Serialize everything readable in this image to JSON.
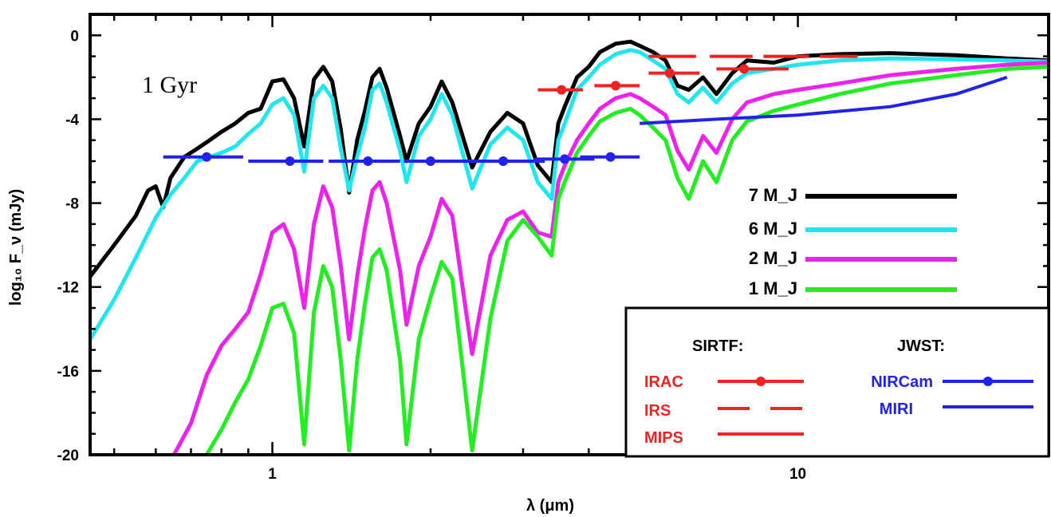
{
  "chart_data": {
    "type": "line",
    "annotation": "1 Gyr",
    "xlabel": "λ (μm)",
    "ylabel": "log₁₀ F_ν (mJy)",
    "xscale": "log",
    "xlim": [
      0.45,
      30
    ],
    "ylim": [
      -20,
      1
    ],
    "x_tick_labels": [
      {
        "x": 1,
        "label": "1"
      },
      {
        "x": 10,
        "label": "10"
      }
    ],
    "y_ticks": [
      0,
      -4,
      -8,
      -12,
      -16,
      -20
    ],
    "y_tick_labels": [
      "0",
      "-4",
      "-8",
      "-12",
      "-16",
      "-20"
    ],
    "grid": false,
    "legend_position": "center-right",
    "series": [
      {
        "name": "7 M_J",
        "color": "#000000",
        "points": [
          [
            0.45,
            -11.5
          ],
          [
            0.5,
            -10
          ],
          [
            0.55,
            -8.6
          ],
          [
            0.58,
            -7.4
          ],
          [
            0.6,
            -7.2
          ],
          [
            0.62,
            -8.2
          ],
          [
            0.64,
            -6.8
          ],
          [
            0.68,
            -5.8
          ],
          [
            0.72,
            -5.4
          ],
          [
            0.76,
            -5.0
          ],
          [
            0.8,
            -4.6
          ],
          [
            0.85,
            -4.2
          ],
          [
            0.9,
            -3.7
          ],
          [
            0.95,
            -3.5
          ],
          [
            1.0,
            -2.2
          ],
          [
            1.05,
            -2.1
          ],
          [
            1.1,
            -3.0
          ],
          [
            1.15,
            -5.3
          ],
          [
            1.2,
            -2.1
          ],
          [
            1.25,
            -1.5
          ],
          [
            1.3,
            -2.2
          ],
          [
            1.35,
            -4.5
          ],
          [
            1.4,
            -7.5
          ],
          [
            1.45,
            -5.0
          ],
          [
            1.5,
            -3.6
          ],
          [
            1.55,
            -2.0
          ],
          [
            1.6,
            -1.6
          ],
          [
            1.65,
            -2.5
          ],
          [
            1.75,
            -4.8
          ],
          [
            1.8,
            -6.0
          ],
          [
            1.9,
            -4.2
          ],
          [
            2.0,
            -3.4
          ],
          [
            2.1,
            -2.2
          ],
          [
            2.2,
            -3.2
          ],
          [
            2.4,
            -6.3
          ],
          [
            2.6,
            -4.6
          ],
          [
            2.8,
            -3.7
          ],
          [
            3.0,
            -4.2
          ],
          [
            3.2,
            -6.2
          ],
          [
            3.4,
            -7.0
          ],
          [
            3.5,
            -4.2
          ],
          [
            3.6,
            -3.4
          ],
          [
            3.8,
            -2.0
          ],
          [
            4.0,
            -1.5
          ],
          [
            4.2,
            -0.8
          ],
          [
            4.5,
            -0.4
          ],
          [
            4.8,
            -0.3
          ],
          [
            5.0,
            -0.5
          ],
          [
            5.3,
            -0.8
          ],
          [
            5.6,
            -1.2
          ],
          [
            5.9,
            -2.4
          ],
          [
            6.2,
            -2.6
          ],
          [
            6.6,
            -2.0
          ],
          [
            7.0,
            -2.8
          ],
          [
            7.5,
            -1.8
          ],
          [
            8.0,
            -1.2
          ],
          [
            9.0,
            -1.3
          ],
          [
            10,
            -1.0
          ],
          [
            12,
            -0.9
          ],
          [
            15,
            -0.85
          ],
          [
            20,
            -0.95
          ],
          [
            25,
            -1.1
          ],
          [
            30,
            -1.2
          ]
        ]
      },
      {
        "name": "6 M_J",
        "color": "#22e6ee",
        "points": [
          [
            0.45,
            -14.5
          ],
          [
            0.5,
            -12.6
          ],
          [
            0.55,
            -10.6
          ],
          [
            0.6,
            -8.7
          ],
          [
            0.64,
            -7.6
          ],
          [
            0.68,
            -6.8
          ],
          [
            0.72,
            -6.0
          ],
          [
            0.76,
            -5.8
          ],
          [
            0.8,
            -5.6
          ],
          [
            0.85,
            -5.3
          ],
          [
            0.9,
            -4.7
          ],
          [
            0.95,
            -4.2
          ],
          [
            1.0,
            -3.3
          ],
          [
            1.05,
            -3.0
          ],
          [
            1.1,
            -3.8
          ],
          [
            1.15,
            -6.5
          ],
          [
            1.2,
            -3.0
          ],
          [
            1.25,
            -2.4
          ],
          [
            1.3,
            -3.0
          ],
          [
            1.35,
            -5.4
          ],
          [
            1.4,
            -7.4
          ],
          [
            1.45,
            -5.8
          ],
          [
            1.5,
            -4.4
          ],
          [
            1.55,
            -2.6
          ],
          [
            1.6,
            -2.3
          ],
          [
            1.65,
            -3.2
          ],
          [
            1.75,
            -5.5
          ],
          [
            1.8,
            -7.0
          ],
          [
            1.9,
            -4.8
          ],
          [
            2.0,
            -4.0
          ],
          [
            2.1,
            -2.8
          ],
          [
            2.2,
            -3.8
          ],
          [
            2.4,
            -7.3
          ],
          [
            2.6,
            -5.2
          ],
          [
            2.8,
            -4.4
          ],
          [
            3.0,
            -5.0
          ],
          [
            3.2,
            -7.0
          ],
          [
            3.4,
            -7.8
          ],
          [
            3.5,
            -5.0
          ],
          [
            3.6,
            -4.2
          ],
          [
            3.8,
            -2.6
          ],
          [
            4.0,
            -2.0
          ],
          [
            4.2,
            -1.4
          ],
          [
            4.5,
            -0.9
          ],
          [
            4.8,
            -0.7
          ],
          [
            5.0,
            -0.8
          ],
          [
            5.3,
            -1.2
          ],
          [
            5.6,
            -1.6
          ],
          [
            5.9,
            -2.8
          ],
          [
            6.2,
            -3.2
          ],
          [
            6.6,
            -2.5
          ],
          [
            7.0,
            -3.2
          ],
          [
            7.5,
            -2.3
          ],
          [
            8.0,
            -1.8
          ],
          [
            9.0,
            -1.6
          ],
          [
            10,
            -1.4
          ],
          [
            12,
            -1.2
          ],
          [
            15,
            -1.1
          ],
          [
            20,
            -1.15
          ],
          [
            25,
            -1.2
          ],
          [
            30,
            -1.25
          ]
        ]
      },
      {
        "name": "2 M_J",
        "color": "#ee22ee",
        "points": [
          [
            0.65,
            -20
          ],
          [
            0.7,
            -18.5
          ],
          [
            0.75,
            -16.2
          ],
          [
            0.8,
            -14.8
          ],
          [
            0.85,
            -14.0
          ],
          [
            0.9,
            -13.2
          ],
          [
            0.95,
            -11.4
          ],
          [
            1.0,
            -9.4
          ],
          [
            1.05,
            -9.0
          ],
          [
            1.1,
            -10.2
          ],
          [
            1.15,
            -13.0
          ],
          [
            1.2,
            -9.0
          ],
          [
            1.25,
            -7.2
          ],
          [
            1.3,
            -8.2
          ],
          [
            1.35,
            -11.0
          ],
          [
            1.4,
            -14.5
          ],
          [
            1.45,
            -11.5
          ],
          [
            1.5,
            -9.2
          ],
          [
            1.55,
            -7.4
          ],
          [
            1.6,
            -7.0
          ],
          [
            1.65,
            -8.0
          ],
          [
            1.75,
            -11.2
          ],
          [
            1.8,
            -13.8
          ],
          [
            1.9,
            -11.0
          ],
          [
            2.0,
            -9.6
          ],
          [
            2.1,
            -7.8
          ],
          [
            2.2,
            -8.6
          ],
          [
            2.4,
            -15.2
          ],
          [
            2.6,
            -10.5
          ],
          [
            2.8,
            -8.8
          ],
          [
            3.0,
            -8.4
          ],
          [
            3.2,
            -9.4
          ],
          [
            3.4,
            -9.6
          ],
          [
            3.5,
            -7.0
          ],
          [
            3.6,
            -6.2
          ],
          [
            3.8,
            -5.0
          ],
          [
            4.0,
            -4.2
          ],
          [
            4.2,
            -3.5
          ],
          [
            4.5,
            -3.0
          ],
          [
            4.8,
            -2.8
          ],
          [
            5.0,
            -3.0
          ],
          [
            5.3,
            -3.4
          ],
          [
            5.6,
            -3.8
          ],
          [
            5.9,
            -5.5
          ],
          [
            6.2,
            -6.4
          ],
          [
            6.6,
            -4.8
          ],
          [
            7.0,
            -5.6
          ],
          [
            7.5,
            -4.0
          ],
          [
            8.0,
            -3.2
          ],
          [
            9.0,
            -2.8
          ],
          [
            10,
            -2.6
          ],
          [
            12,
            -2.3
          ],
          [
            15,
            -1.9
          ],
          [
            20,
            -1.6
          ],
          [
            25,
            -1.4
          ],
          [
            30,
            -1.3
          ]
        ]
      },
      {
        "name": "1 M_J",
        "color": "#22ee22",
        "points": [
          [
            0.75,
            -20
          ],
          [
            0.8,
            -18.8
          ],
          [
            0.85,
            -17.5
          ],
          [
            0.9,
            -16.4
          ],
          [
            0.95,
            -14.8
          ],
          [
            1.0,
            -13.0
          ],
          [
            1.05,
            -12.8
          ],
          [
            1.1,
            -14.2
          ],
          [
            1.15,
            -19.5
          ],
          [
            1.2,
            -13.2
          ],
          [
            1.25,
            -11.0
          ],
          [
            1.3,
            -12.0
          ],
          [
            1.35,
            -15.5
          ],
          [
            1.4,
            -19.8
          ],
          [
            1.45,
            -15.5
          ],
          [
            1.5,
            -12.8
          ],
          [
            1.55,
            -10.6
          ],
          [
            1.6,
            -10.2
          ],
          [
            1.65,
            -11.2
          ],
          [
            1.75,
            -15.5
          ],
          [
            1.8,
            -19.5
          ],
          [
            1.9,
            -14.5
          ],
          [
            2.0,
            -12.5
          ],
          [
            2.1,
            -10.8
          ],
          [
            2.2,
            -11.6
          ],
          [
            2.4,
            -19.8
          ],
          [
            2.6,
            -13.5
          ],
          [
            2.8,
            -9.8
          ],
          [
            3.0,
            -8.8
          ],
          [
            3.2,
            -9.6
          ],
          [
            3.4,
            -10.5
          ],
          [
            3.5,
            -7.8
          ],
          [
            3.6,
            -7.0
          ],
          [
            3.8,
            -5.6
          ],
          [
            4.0,
            -4.8
          ],
          [
            4.2,
            -4.1
          ],
          [
            4.5,
            -3.7
          ],
          [
            4.8,
            -3.5
          ],
          [
            5.0,
            -3.8
          ],
          [
            5.3,
            -4.4
          ],
          [
            5.6,
            -5.0
          ],
          [
            5.9,
            -6.8
          ],
          [
            6.2,
            -7.8
          ],
          [
            6.6,
            -6.0
          ],
          [
            7.0,
            -7.0
          ],
          [
            7.5,
            -5.0
          ],
          [
            8.0,
            -4.1
          ],
          [
            9.0,
            -3.6
          ],
          [
            10,
            -3.3
          ],
          [
            12,
            -2.8
          ],
          [
            15,
            -2.3
          ],
          [
            20,
            -1.9
          ],
          [
            25,
            -1.6
          ],
          [
            30,
            -1.5
          ]
        ]
      }
    ],
    "legend": {
      "sirtf_title": "SIRTF:",
      "jwst_title": "JWST:",
      "instruments": [
        {
          "name": "IRAC",
          "color": "#ee2222",
          "style": "line-dot"
        },
        {
          "name": "IRS",
          "color": "#ee2222",
          "style": "dashed"
        },
        {
          "name": "MIPS",
          "color": "#ee2222",
          "style": "solid"
        },
        {
          "name": "NIRCam",
          "color": "#2222ee",
          "style": "line-dot"
        },
        {
          "name": "MIRI",
          "color": "#2222ee",
          "style": "solid"
        }
      ]
    },
    "sensitivity": {
      "nircam": {
        "color": "#2222ee",
        "segments": [
          [
            0.62,
            0.88,
            0.75,
            -5.8
          ],
          [
            0.9,
            1.25,
            1.08,
            -6.0
          ],
          [
            1.28,
            1.75,
            1.52,
            -6.0
          ],
          [
            1.78,
            2.5,
            2.0,
            -6.0
          ],
          [
            2.45,
            3.3,
            2.75,
            -6.0
          ],
          [
            3.15,
            4.1,
            3.6,
            -5.9
          ],
          [
            3.85,
            5.0,
            4.4,
            -5.8
          ]
        ]
      },
      "irac": {
        "color": "#ee2222",
        "segments": [
          [
            3.2,
            3.9,
            3.55,
            -2.6
          ],
          [
            4.1,
            5.0,
            4.5,
            -2.4
          ],
          [
            5.2,
            6.5,
            5.7,
            -1.8
          ],
          [
            7.0,
            9.6,
            7.9,
            -1.6
          ]
        ]
      },
      "irs": {
        "color": "#ee2222",
        "segments": [
          [
            5.2,
            6.4,
            -1.0
          ],
          [
            6.8,
            8.2,
            -1.0
          ],
          [
            8.6,
            10.5,
            -1.0
          ],
          [
            11,
            13,
            -1.0
          ]
        ]
      },
      "miri": {
        "color": "#2222ee",
        "points": [
          [
            5.0,
            -4.2
          ],
          [
            7.0,
            -4.0
          ],
          [
            10,
            -3.8
          ],
          [
            15,
            -3.4
          ],
          [
            20,
            -2.8
          ],
          [
            25,
            -2.0
          ]
        ]
      }
    }
  }
}
